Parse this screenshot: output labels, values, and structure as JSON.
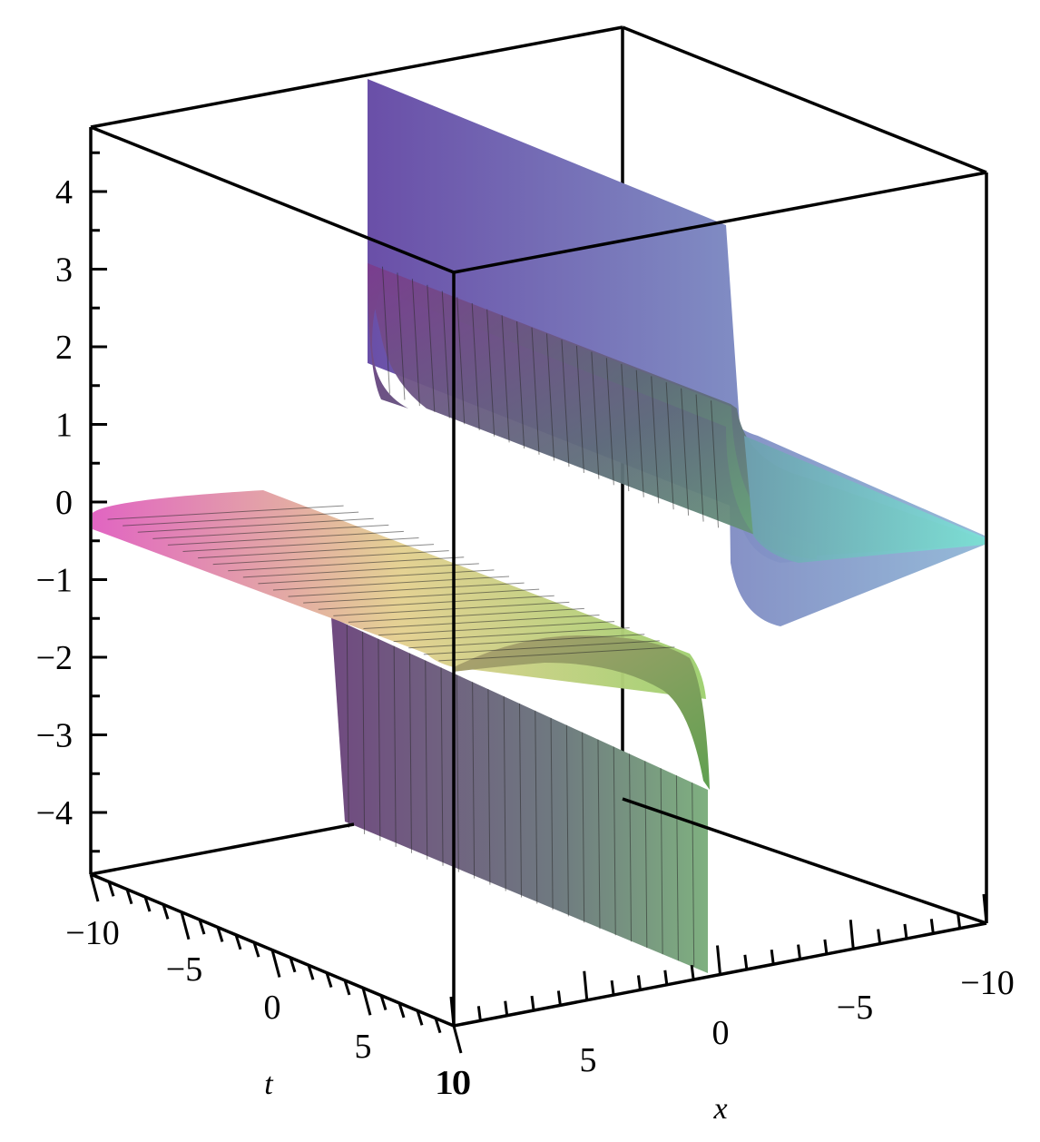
{
  "chart_data": {
    "type": "surface3d",
    "title": "",
    "xlabel": "x",
    "ylabel": "t",
    "zlabel": "",
    "xlim": [
      -10,
      10
    ],
    "tlim": [
      -10,
      10
    ],
    "zlim": [
      -4.8,
      4.8
    ],
    "x_ticks": [
      "−10",
      "−5",
      "0",
      "5",
      "10"
    ],
    "t_ticks": [
      "−10",
      "−5",
      "0",
      "5",
      "10"
    ],
    "z_ticks": [
      "4",
      "3",
      "2",
      "1",
      "0",
      "−1",
      "−2",
      "−3",
      "−4"
    ],
    "grid": false,
    "legend": "none",
    "box": true,
    "series": [
      {
        "surface": "upper-branch",
        "description_values": {
          "x_range": [
            -10,
            1.1
          ],
          "t_range": [
            -10,
            10
          ],
          "z_near_x_minus10": 0,
          "z_at_x_1": 4.8
        }
      },
      {
        "surface": "lower-branch",
        "description_values": {
          "x_range": [
            -1.1,
            10
          ],
          "t_range": [
            -10,
            10
          ],
          "z_near_x_10": 0,
          "z_at_x_minus1": -4.8
        }
      }
    ],
    "colors": {
      "upper_front": "#6a4a9a",
      "upper_back": "#7a8acc",
      "upper_flat": "#8ad0d0",
      "lower_flat_left": "#e070c0",
      "lower_flat_mid": "#e0d890",
      "lower_wall": "#6a5a8a",
      "lower_wall_end": "#7aa07a",
      "mesh": "#2a2a2a"
    }
  }
}
